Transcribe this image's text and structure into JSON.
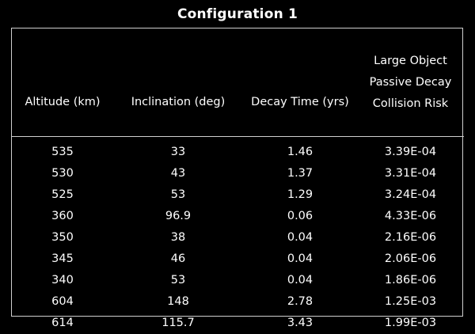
{
  "title": "Configuration 1",
  "columns": [
    "Altitude (km)",
    "Inclination (deg)",
    "Decay Time (yrs)",
    [
      "Large Object",
      "Passive Decay",
      "Collision Risk"
    ]
  ],
  "rows": [
    [
      "535",
      "33",
      "1.46",
      "3.39E-04"
    ],
    [
      "530",
      "43",
      "1.37",
      "3.31E-04"
    ],
    [
      "525",
      "53",
      "1.29",
      "3.24E-04"
    ],
    [
      "360",
      "96.9",
      "0.06",
      "4.33E-06"
    ],
    [
      "350",
      "38",
      "0.04",
      "2.16E-06"
    ],
    [
      "345",
      "46",
      "0.04",
      "2.06E-06"
    ],
    [
      "340",
      "53",
      "0.04",
      "1.86E-06"
    ],
    [
      "604",
      "148",
      "2.78",
      "1.25E-03"
    ],
    [
      "614",
      "115.7",
      "3.43",
      "1.99E-03"
    ]
  ]
}
